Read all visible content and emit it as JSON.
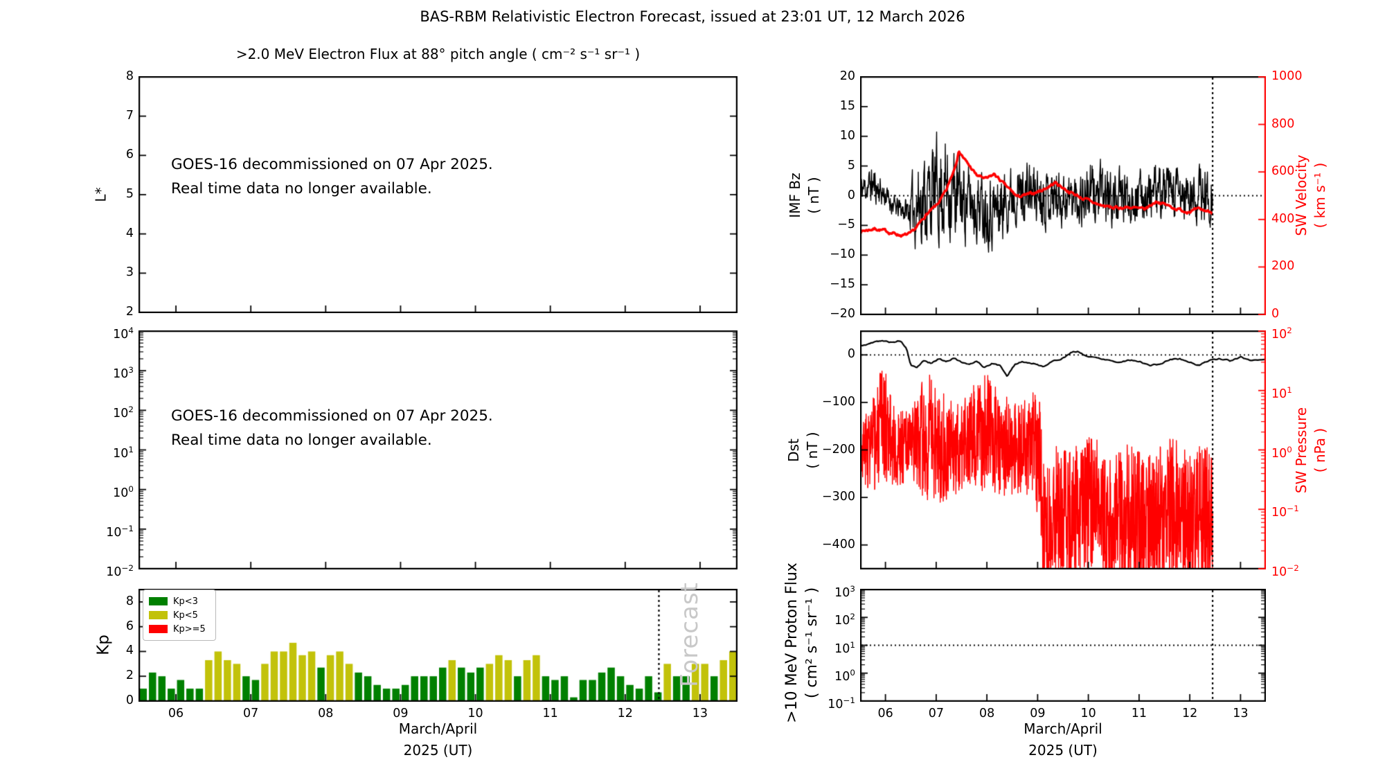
{
  "figure_title": "BAS-RBM Relativistic Electron Forecast, issued at 23:01 UT, 12 March 2026",
  "x_axis": {
    "lim": [
      5.5,
      13.5
    ],
    "ticks": [
      6,
      7,
      8,
      9,
      10,
      11,
      12,
      13
    ],
    "tick_labels": [
      "06",
      "07",
      "08",
      "09",
      "10",
      "11",
      "12",
      "13"
    ],
    "label_line1": "March/April",
    "label_line2": "2025 (UT)"
  },
  "forecast_x": 12.45,
  "colors": {
    "black": "#000000",
    "red": "#ff0000",
    "kp_green": "#008000",
    "kp_yellow": "#c2c20a",
    "forecast_gray": "#c8c8c8"
  },
  "chart_data": [
    {
      "id": "electron-flux-lstar",
      "type": "line",
      "title": ">2.0 MeV Electron Flux at 88° pitch angle ( cm⁻² s⁻¹ sr⁻¹ )",
      "ylabel": "L*",
      "ylim": [
        2,
        8
      ],
      "yticks": [
        [
          2,
          "2"
        ],
        [
          3,
          "3"
        ],
        [
          4,
          "4"
        ],
        [
          5,
          "5"
        ],
        [
          6,
          "6"
        ],
        [
          7,
          "7"
        ],
        [
          8,
          "8"
        ]
      ],
      "series": [],
      "annotation": [
        "GOES-16 decommissioned on 07 Apr 2025.",
        "Real time data no longer available."
      ]
    },
    {
      "id": "electron-flux-log",
      "type": "line",
      "ylog": true,
      "ylim": [
        -2,
        4
      ],
      "yticks": [
        [
          4,
          "10^4"
        ],
        [
          3,
          "10^3"
        ],
        [
          2,
          "10^2"
        ],
        [
          1,
          "10^1"
        ],
        [
          0,
          "10^0"
        ],
        [
          -1,
          "10^−1"
        ],
        [
          -2,
          "10^−2"
        ]
      ],
      "series": [],
      "annotation": [
        "GOES-16 decommissioned on 07 Apr 2025.",
        "Real time data no longer available."
      ]
    },
    {
      "id": "kp",
      "type": "bar",
      "ylabel": "Kp",
      "ylim": [
        0,
        9
      ],
      "yticks": [
        [
          0,
          "0"
        ],
        [
          2,
          "2"
        ],
        [
          4,
          "4"
        ],
        [
          6,
          "6"
        ],
        [
          8,
          "8"
        ]
      ],
      "bar_start": 5.5,
      "bar_step": 0.125,
      "values": [
        1.0,
        2.3,
        2.0,
        1.0,
        1.7,
        1.0,
        1.0,
        3.3,
        4.0,
        3.3,
        3.0,
        2.0,
        1.7,
        3.0,
        4.0,
        4.0,
        4.7,
        3.7,
        4.0,
        2.7,
        3.7,
        4.0,
        3.0,
        2.3,
        2.0,
        1.3,
        1.0,
        1.0,
        1.3,
        2.0,
        2.0,
        2.0,
        2.7,
        3.3,
        2.7,
        2.3,
        2.7,
        3.0,
        3.7,
        3.3,
        2.0,
        3.3,
        3.7,
        2.0,
        1.7,
        2.0,
        0.3,
        1.7,
        1.7,
        2.3,
        2.7,
        2.0,
        1.3,
        1.0,
        2.0,
        0.7,
        3.0,
        2.0,
        2.0,
        3.0,
        3.0,
        2.0,
        3.3,
        4.0
      ],
      "color_rule": {
        "green_below": 3,
        "yellow_below": 5
      },
      "legend": [
        {
          "label": "Kp<3",
          "color": "#008000"
        },
        {
          "label": "Kp<5",
          "color": "#c2c20a"
        },
        {
          "label": "Kp>=5",
          "color": "#ff0000"
        }
      ],
      "forecast_line": true,
      "watermark": "Forecast"
    },
    {
      "id": "imf-bz-sw-velocity",
      "type": "line",
      "left": {
        "label": "IMF Bz",
        "units": "( nT )",
        "ylim": [
          -20,
          20
        ],
        "yticks": [
          [
            20,
            "20"
          ],
          [
            15,
            "15"
          ],
          [
            10,
            "10"
          ],
          [
            5,
            "5"
          ],
          [
            0,
            "0"
          ],
          [
            -5,
            "−5"
          ],
          [
            -10,
            "−10"
          ],
          [
            -15,
            "−15"
          ],
          [
            -20,
            "−20"
          ]
        ],
        "hline": 0
      },
      "right": {
        "label": "SW Velocity",
        "units": "( km s⁻¹ )",
        "color": "#ff0000",
        "ylim": [
          0,
          1000
        ],
        "yticks": [
          [
            1000,
            "1000"
          ],
          [
            800,
            "800"
          ],
          [
            600,
            "600"
          ],
          [
            400,
            "400"
          ],
          [
            200,
            "200"
          ],
          [
            0,
            "0"
          ]
        ]
      },
      "forecast_line": true,
      "series": [
        {
          "name": "IMF Bz",
          "axis": "left",
          "color": "#000000",
          "lw": 1.4,
          "seed": 11,
          "smooth": 0.45,
          "gain": 1.7,
          "spp": 2,
          "x": [
            5.5,
            5.75,
            6.0,
            6.2,
            6.45,
            6.6,
            6.9,
            7.15,
            7.4,
            7.6,
            7.9,
            8.2,
            8.5,
            8.9,
            9.3,
            9.7,
            10.1,
            10.5,
            11.0,
            11.5,
            12.0,
            12.45
          ],
          "mean": [
            1.0,
            2.0,
            0.0,
            -2.0,
            -2.5,
            -1.5,
            0.5,
            1.5,
            0.0,
            -1.0,
            -1.5,
            -2.5,
            0.5,
            0.5,
            0.0,
            -0.5,
            0.5,
            -0.5,
            0.0,
            0.5,
            -0.5,
            0.5
          ],
          "amp": [
            2.0,
            2.8,
            1.8,
            1.5,
            2.0,
            6.5,
            7.0,
            8.0,
            6.5,
            5.5,
            5.0,
            5.5,
            4.0,
            4.5,
            4.0,
            4.0,
            4.5,
            4.0,
            3.5,
            4.0,
            4.0,
            4.5
          ]
        },
        {
          "name": "SW Velocity",
          "axis": "right",
          "color": "#ff0000",
          "lw": 3.5,
          "seed": 7,
          "smooth": 0.75,
          "gain": 2.0,
          "spp": 1,
          "amp_const": 9,
          "x": [
            5.5,
            5.8,
            6.1,
            6.35,
            6.5,
            6.65,
            6.8,
            7.0,
            7.2,
            7.35,
            7.45,
            7.6,
            7.8,
            8.0,
            8.15,
            8.35,
            8.6,
            8.85,
            9.1,
            9.35,
            9.6,
            9.9,
            10.2,
            10.5,
            10.8,
            11.1,
            11.35,
            11.6,
            11.9,
            12.2,
            12.45
          ],
          "mean": [
            350,
            362,
            345,
            332,
            338,
            375,
            420,
            455,
            520,
            610,
            690,
            640,
            585,
            570,
            590,
            545,
            495,
            505,
            525,
            555,
            520,
            488,
            462,
            448,
            452,
            440,
            478,
            455,
            435,
            440,
            432
          ]
        }
      ]
    },
    {
      "id": "dst-sw-pressure",
      "type": "line",
      "left": {
        "label": "Dst",
        "units": "( nT )",
        "ylim": [
          -450,
          50
        ],
        "yticks": [
          [
            0,
            "0"
          ],
          [
            -100,
            "−100"
          ],
          [
            -200,
            "−200"
          ],
          [
            -300,
            "−300"
          ],
          [
            -400,
            "−400"
          ]
        ],
        "hline": 0
      },
      "right": {
        "label": "SW Pressure",
        "units": "( nPa )",
        "color": "#ff0000",
        "ylog": true,
        "ylim": [
          -2,
          2
        ],
        "yticks": [
          [
            2,
            "10^2"
          ],
          [
            1,
            "10^1"
          ],
          [
            0,
            "10^0"
          ],
          [
            -1,
            "10^−1"
          ],
          [
            -2,
            "10^−2"
          ]
        ]
      },
      "forecast_line": true,
      "series": [
        {
          "name": "SW Pressure",
          "axis": "right",
          "color": "#ff0000",
          "lw": 1.4,
          "seed": 3,
          "smooth": 0.0,
          "gain": 1.25,
          "spp": 3,
          "clip": [
            -2,
            2
          ],
          "x": [
            5.5,
            5.8,
            5.95,
            6.2,
            6.5,
            6.8,
            7.1,
            7.4,
            7.7,
            8.0,
            8.3,
            8.6,
            8.9,
            9.05,
            9.1,
            9.4,
            9.7,
            10.0,
            10.15,
            10.3,
            10.5,
            10.8,
            11.1,
            11.4,
            11.7,
            12.0,
            12.2,
            12.45
          ],
          "mean": [
            0.0,
            0.1,
            0.5,
            0.0,
            0.1,
            0.2,
            0.1,
            0.0,
            0.2,
            0.3,
            0.1,
            0.0,
            0.1,
            -0.3,
            -1.2,
            -1.0,
            -1.2,
            -1.0,
            -0.6,
            -1.2,
            -1.3,
            -1.1,
            -1.3,
            -1.2,
            -1.0,
            -1.2,
            -1.1,
            -1.2
          ],
          "amp": [
            0.4,
            0.7,
            0.8,
            0.5,
            0.5,
            0.9,
            0.8,
            0.6,
            0.7,
            0.8,
            0.7,
            0.6,
            0.7,
            0.9,
            1.0,
            0.9,
            1.0,
            1.0,
            0.8,
            1.0,
            1.0,
            1.0,
            1.0,
            1.0,
            1.0,
            1.0,
            1.0,
            1.0
          ]
        },
        {
          "name": "Dst",
          "axis": "left",
          "color": "#000000",
          "lw": 2.2,
          "seed": 5,
          "smooth": 0.7,
          "gain": 1.8,
          "spp": 0.5,
          "amp_const": 2.2,
          "x": [
            5.5,
            5.7,
            5.9,
            6.1,
            6.3,
            6.42,
            6.5,
            6.62,
            6.75,
            6.9,
            7.05,
            7.2,
            7.35,
            7.5,
            7.65,
            7.8,
            7.95,
            8.1,
            8.25,
            8.4,
            8.55,
            8.7,
            8.9,
            9.1,
            9.3,
            9.5,
            9.65,
            9.8,
            9.95,
            10.15,
            10.4,
            10.6,
            10.8,
            11.0,
            11.2,
            11.4,
            11.6,
            11.8,
            12.0,
            12.2,
            12.4,
            12.6,
            12.8,
            13.0,
            13.2,
            13.5
          ],
          "mean": [
            18,
            24,
            30,
            27,
            30,
            12,
            -22,
            -28,
            -12,
            -18,
            -8,
            -14,
            -6,
            -16,
            -22,
            -12,
            -26,
            -18,
            -22,
            -44,
            -20,
            -14,
            -18,
            -24,
            -14,
            -6,
            4,
            7,
            -2,
            -6,
            -10,
            -16,
            -10,
            -13,
            -22,
            -20,
            -10,
            -8,
            -16,
            -22,
            -10,
            -8,
            -13,
            -5,
            -12,
            -8
          ]
        }
      ]
    },
    {
      "id": "proton-flux",
      "type": "line",
      "left": {
        "label": ">10 MeV Proton Flux",
        "units": "( cm² s⁻¹ sr⁻¹ )",
        "ylog": true,
        "ylim": [
          -1,
          3
        ],
        "yticks": [
          [
            3,
            "10^3"
          ],
          [
            2,
            "10^2"
          ],
          [
            1,
            "10^1"
          ],
          [
            0,
            "10^0"
          ],
          [
            -1,
            "10^−1"
          ]
        ],
        "hline": 1
      },
      "forecast_line": true,
      "series": []
    }
  ]
}
